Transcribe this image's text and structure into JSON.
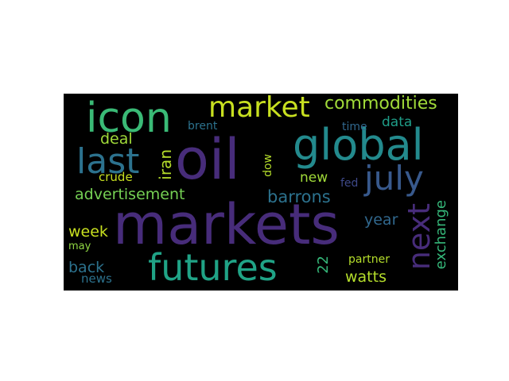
{
  "words": {
    "oil": {
      "text": "oil",
      "color": "#472c7a"
    },
    "markets": {
      "text": "markets",
      "color": "#472c7a"
    },
    "icon": {
      "text": "icon",
      "color": "#3aba76"
    },
    "market": {
      "text": "market",
      "color": "#c8e020"
    },
    "commodities": {
      "text": "commodities",
      "color": "#a0da39"
    },
    "global": {
      "text": "global",
      "color": "#238a8d"
    },
    "july": {
      "text": "july",
      "color": "#38598c"
    },
    "last": {
      "text": "last",
      "color": "#2c728e"
    },
    "futures": {
      "text": "futures",
      "color": "#20a386"
    },
    "next": {
      "text": "next",
      "color": "#472c7a"
    },
    "advertisement": {
      "text": "advertisement",
      "color": "#75d054"
    },
    "barrons": {
      "text": "barrons",
      "color": "#2c728e"
    },
    "deal": {
      "text": "deal",
      "color": "#a0da39"
    },
    "iran": {
      "text": "iran",
      "color": "#b5de2b"
    },
    "crude": {
      "text": "crude",
      "color": "#c8e020"
    },
    "brent": {
      "text": "brent",
      "color": "#2c728e"
    },
    "time": {
      "text": "time",
      "color": "#31688e"
    },
    "data": {
      "text": "data",
      "color": "#1f9e89"
    },
    "dow": {
      "text": "dow",
      "color": "#b5de2b"
    },
    "new": {
      "text": "new",
      "color": "#a0da39"
    },
    "fed": {
      "text": "fed",
      "color": "#3e4989"
    },
    "year": {
      "text": "year",
      "color": "#31688e"
    },
    "exchange": {
      "text": "exchange",
      "color": "#35b779"
    },
    "week": {
      "text": "week",
      "color": "#c8e020"
    },
    "may": {
      "text": "may",
      "color": "#90d743"
    },
    "back": {
      "text": "back",
      "color": "#2c728e"
    },
    "news": {
      "text": "news",
      "color": "#2c728e"
    },
    "twentytwo": {
      "text": "22",
      "color": "#35b779"
    },
    "partner": {
      "text": "partner",
      "color": "#b5de2b"
    },
    "watts": {
      "text": "watts",
      "color": "#b5de2b"
    }
  }
}
